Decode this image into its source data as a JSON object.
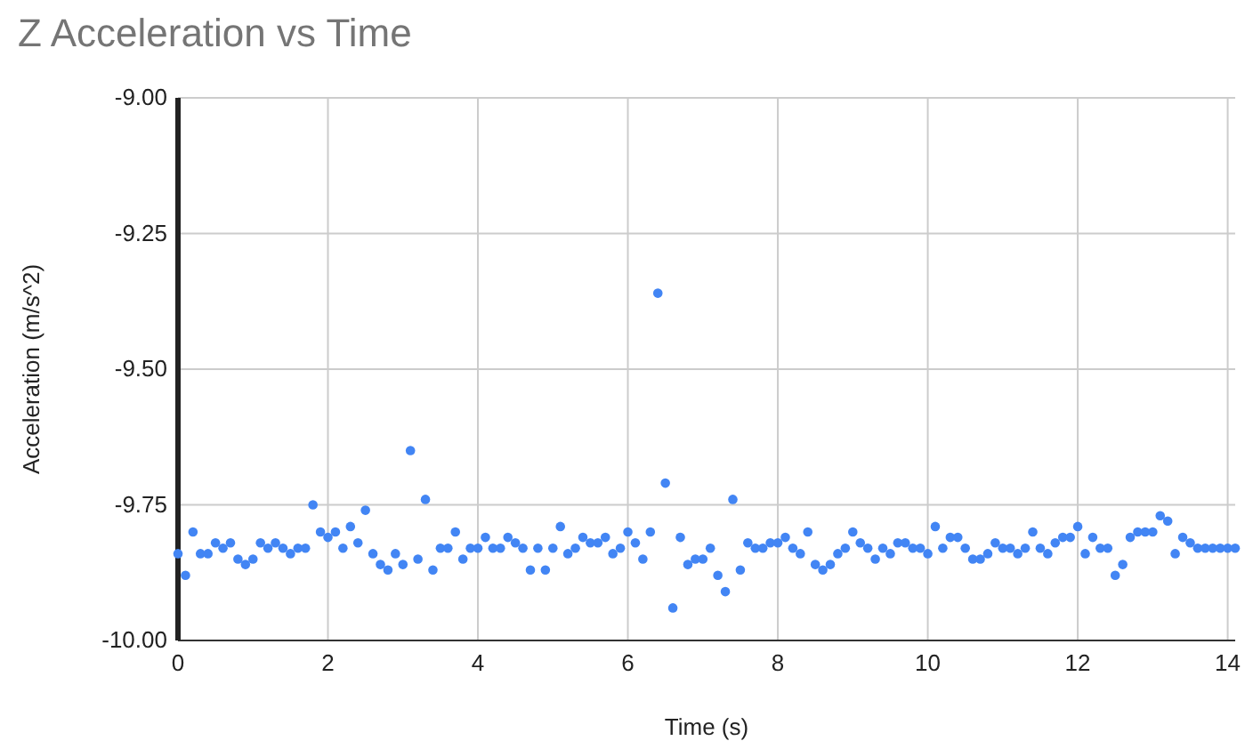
{
  "chart_data": {
    "type": "scatter",
    "title": "Z Acceleration vs Time",
    "xlabel": "Time (s)",
    "ylabel": "Acceleration (m/s^2)",
    "xlim": [
      0,
      14.1
    ],
    "xticks": [
      0,
      2,
      4,
      6,
      8,
      10,
      12,
      14
    ],
    "ylim": [
      -10,
      -9
    ],
    "yticks": [
      {
        "value": -10,
        "label": "-10.00"
      },
      {
        "value": -9.75,
        "label": "-9.75"
      },
      {
        "value": -9.5,
        "label": "-9.50"
      },
      {
        "value": -9.25,
        "label": "-9.25"
      },
      {
        "value": -9,
        "label": "-9.00"
      }
    ],
    "grid": true,
    "marker": "circle",
    "series": [
      {
        "color": "#4285f4",
        "x": [
          0,
          0.1,
          0.2,
          0.3,
          0.4,
          0.5,
          0.6,
          0.7,
          0.8,
          0.9,
          1,
          1.1,
          1.2,
          1.3,
          1.4,
          1.5,
          1.6,
          1.7,
          1.8,
          1.9,
          2,
          2.1,
          2.2,
          2.3,
          2.4,
          2.5,
          2.6,
          2.7,
          2.8,
          2.9,
          3,
          3.1,
          3.2,
          3.3,
          3.4,
          3.5,
          3.6,
          3.7,
          3.8,
          3.9,
          4,
          4.1,
          4.2,
          4.3,
          4.4,
          4.5,
          4.6,
          4.7,
          4.8,
          4.9,
          5,
          5.1,
          5.2,
          5.3,
          5.4,
          5.5,
          5.6,
          5.7,
          5.8,
          5.9,
          6,
          6.1,
          6.2,
          6.3,
          6.4,
          6.5,
          6.6,
          6.7,
          6.8,
          6.9,
          7,
          7.1,
          7.2,
          7.3,
          7.4,
          7.5,
          7.6,
          7.7,
          7.8,
          7.9,
          8,
          8.1,
          8.2,
          8.3,
          8.4,
          8.5,
          8.6,
          8.7,
          8.8,
          8.9,
          9,
          9.1,
          9.2,
          9.3,
          9.4,
          9.5,
          9.6,
          9.7,
          9.8,
          9.9,
          10,
          10.1,
          10.2,
          10.3,
          10.4,
          10.5,
          10.6,
          10.7,
          10.8,
          10.9,
          11,
          11.1,
          11.2,
          11.3,
          11.4,
          11.5,
          11.6,
          11.7,
          11.8,
          11.9,
          12,
          12.1,
          12.2,
          12.3,
          12.4,
          12.5,
          12.6,
          12.7,
          12.8,
          12.9,
          13,
          13.1,
          13.2,
          13.3,
          13.4,
          13.5,
          13.6,
          13.7,
          13.8,
          13.9,
          14,
          14.1
        ],
        "values": [
          -9.84,
          -9.88,
          -9.8,
          -9.84,
          -9.84,
          -9.82,
          -9.83,
          -9.82,
          -9.85,
          -9.86,
          -9.85,
          -9.82,
          -9.83,
          -9.82,
          -9.83,
          -9.84,
          -9.83,
          -9.83,
          -9.75,
          -9.8,
          -9.81,
          -9.8,
          -9.83,
          -9.79,
          -9.82,
          -9.76,
          -9.84,
          -9.86,
          -9.87,
          -9.84,
          -9.86,
          -9.65,
          -9.85,
          -9.74,
          -9.87,
          -9.83,
          -9.83,
          -9.8,
          -9.85,
          -9.83,
          -9.83,
          -9.81,
          -9.83,
          -9.83,
          -9.81,
          -9.82,
          -9.83,
          -9.87,
          -9.83,
          -9.87,
          -9.83,
          -9.79,
          -9.84,
          -9.83,
          -9.81,
          -9.82,
          -9.82,
          -9.81,
          -9.84,
          -9.83,
          -9.8,
          -9.82,
          -9.85,
          -9.8,
          -9.36,
          -9.71,
          -9.94,
          -9.81,
          -9.86,
          -9.85,
          -9.85,
          -9.83,
          -9.88,
          -9.91,
          -9.74,
          -9.87,
          -9.82,
          -9.83,
          -9.83,
          -9.82,
          -9.82,
          -9.81,
          -9.83,
          -9.84,
          -9.8,
          -9.86,
          -9.87,
          -9.86,
          -9.84,
          -9.83,
          -9.8,
          -9.82,
          -9.83,
          -9.85,
          -9.83,
          -9.84,
          -9.82,
          -9.82,
          -9.83,
          -9.83,
          -9.84,
          -9.79,
          -9.83,
          -9.81,
          -9.81,
          -9.83,
          -9.85,
          -9.85,
          -9.84,
          -9.82,
          -9.83,
          -9.83,
          -9.84,
          -9.83,
          -9.8,
          -9.83,
          -9.84,
          -9.82,
          -9.81,
          -9.81,
          -9.79,
          -9.84,
          -9.81,
          -9.83,
          -9.83,
          -9.88,
          -9.86,
          -9.81,
          -9.8,
          -9.8,
          -9.8,
          -9.77,
          -9.78,
          -9.84,
          -9.81,
          -9.82,
          -9.83,
          -9.83,
          -9.83,
          -9.83,
          -9.83,
          -9.83
        ]
      }
    ]
  }
}
